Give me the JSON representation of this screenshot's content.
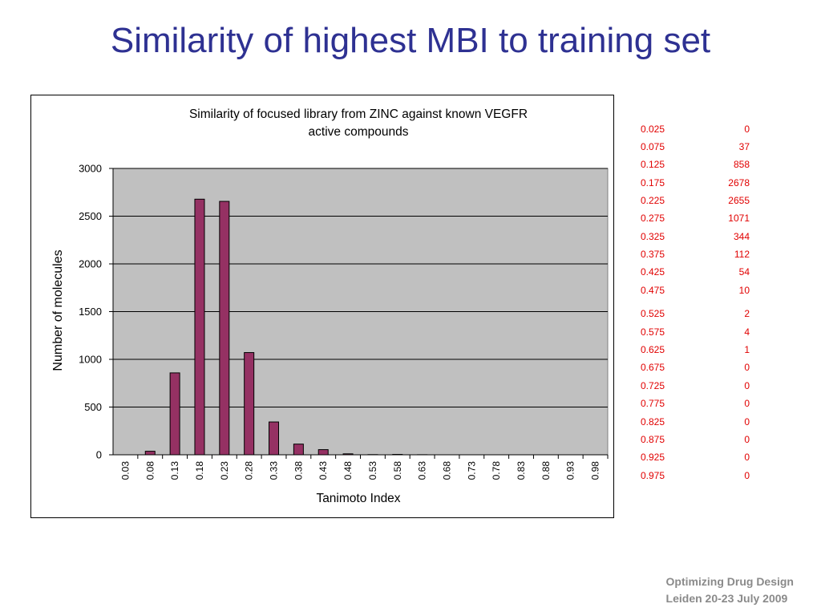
{
  "slide": {
    "title": "Similarity of highest MBI to training set"
  },
  "footer": {
    "line1": "Optimizing Drug Design",
    "line2": "Leiden 20-23 July 2009"
  },
  "colors": {
    "title": "#2e3192",
    "bar": "#953163",
    "plot_background": "#c0c0c0",
    "table_text": "#e10000",
    "footer_text": "#8a8a8a"
  },
  "chart_data": {
    "type": "bar",
    "title": "Similarity of focused library from ZINC against known VEGFR active compounds",
    "title_lines": [
      "Similarity of focused library from ZINC against known VEGFR",
      "active compounds"
    ],
    "xlabel": "Tanimoto Index",
    "ylabel": "Number of molecules",
    "categories": [
      "0.03",
      "0.08",
      "0.13",
      "0.18",
      "0.23",
      "0.28",
      "0.33",
      "0.38",
      "0.43",
      "0.48",
      "0.53",
      "0.58",
      "0.63",
      "0.68",
      "0.73",
      "0.78",
      "0.83",
      "0.88",
      "0.93",
      "0.98"
    ],
    "values": [
      0,
      37,
      858,
      2678,
      2655,
      1071,
      344,
      112,
      54,
      10,
      2,
      4,
      1,
      0,
      0,
      0,
      0,
      0,
      0,
      0
    ],
    "ylim": [
      0,
      3000
    ],
    "yticks": [
      "0",
      "500",
      "1000",
      "1500",
      "2000",
      "2500",
      "3000"
    ],
    "ytick_values": [
      0,
      500,
      1000,
      1500,
      2000,
      2500,
      3000
    ],
    "grid": true,
    "legend": "none"
  },
  "table": {
    "rows": [
      {
        "x": "0.025",
        "y": "0"
      },
      {
        "x": "0.075",
        "y": "37"
      },
      {
        "x": "0.125",
        "y": "858"
      },
      {
        "x": "0.175",
        "y": "2678"
      },
      {
        "x": "0.225",
        "y": "2655"
      },
      {
        "x": "0.275",
        "y": "1071"
      },
      {
        "x": "0.325",
        "y": "344"
      },
      {
        "x": "0.375",
        "y": "112"
      },
      {
        "x": "0.425",
        "y": "54"
      },
      {
        "x": "0.475",
        "y": "10"
      },
      {
        "x": "0.525",
        "y": "2"
      },
      {
        "x": "0.575",
        "y": "4"
      },
      {
        "x": "0.625",
        "y": "1"
      },
      {
        "x": "0.675",
        "y": "0"
      },
      {
        "x": "0.725",
        "y": "0"
      },
      {
        "x": "0.775",
        "y": "0"
      },
      {
        "x": "0.825",
        "y": "0"
      },
      {
        "x": "0.875",
        "y": "0"
      },
      {
        "x": "0.925",
        "y": "0"
      },
      {
        "x": "0.975",
        "y": "0"
      }
    ]
  }
}
